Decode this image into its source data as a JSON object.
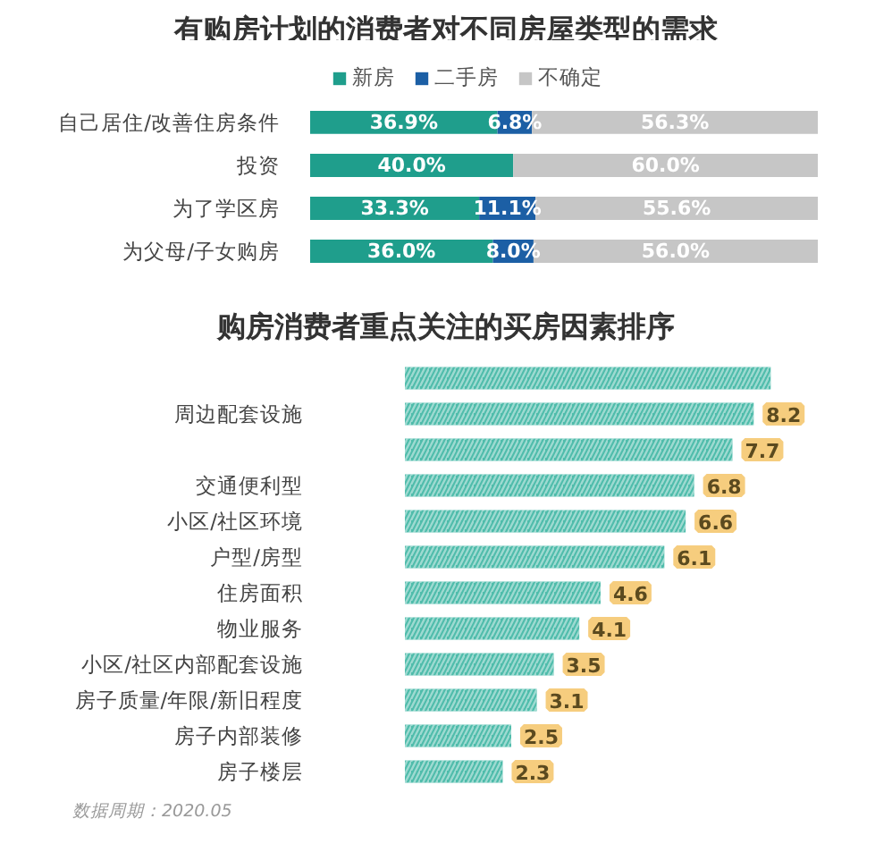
{
  "chart_data": [
    {
      "type": "bar",
      "title": "有购房计划的消费者对不同房屋类型的需求",
      "orientation": "horizontal",
      "stacked": true,
      "legend": "top",
      "tick_labels": "y",
      "categories": [
        "自己居住/改善住房条件",
        "投资",
        "为了学区房",
        "为父母/子女购房"
      ],
      "series": [
        {
          "name": "新房",
          "color": "#1f9e8c",
          "values": [
            36.9,
            40.0,
            33.3,
            36.0
          ],
          "value_labels": [
            "36.9%",
            "40.0%",
            "33.3%",
            "36.0%"
          ]
        },
        {
          "name": "二手房",
          "color": "#1c5fa5",
          "values": [
            6.8,
            null,
            11.1,
            8.0
          ],
          "value_labels": [
            "6.8%",
            null,
            "11.1%",
            "8.0%"
          ]
        },
        {
          "name": "不确定",
          "color": "#c6c6c6",
          "values": [
            56.3,
            60.0,
            55.6,
            56.0
          ],
          "value_labels": [
            "56.3%",
            "60.0%",
            "55.6%",
            "56.0%"
          ]
        }
      ]
    },
    {
      "type": "bar",
      "title": "购房消费者重点关注的买房因素排序",
      "orientation": "horizontal",
      "tick_labels": "y",
      "color": "#4fbcab",
      "categories": [
        null,
        "周边配套设施",
        null,
        "交通便利型",
        "小区/社区环境",
        "户型/房型",
        "住房面积",
        "物业服务",
        "小区/社区内部配套设施",
        "房子质量/年限/新旧程度",
        "房子内部装修",
        "房子楼层"
      ],
      "values": [
        8.6,
        8.2,
        7.7,
        6.8,
        6.6,
        6.1,
        4.6,
        4.1,
        3.5,
        3.1,
        2.5,
        2.3
      ],
      "value_labels": [
        null,
        "8.2",
        "7.7",
        "6.8",
        "6.6",
        "6.1",
        "4.6",
        "4.1",
        "3.5",
        "3.1",
        "2.5",
        "2.3"
      ],
      "annotations": [
        "数据周期：2020.05"
      ]
    }
  ]
}
